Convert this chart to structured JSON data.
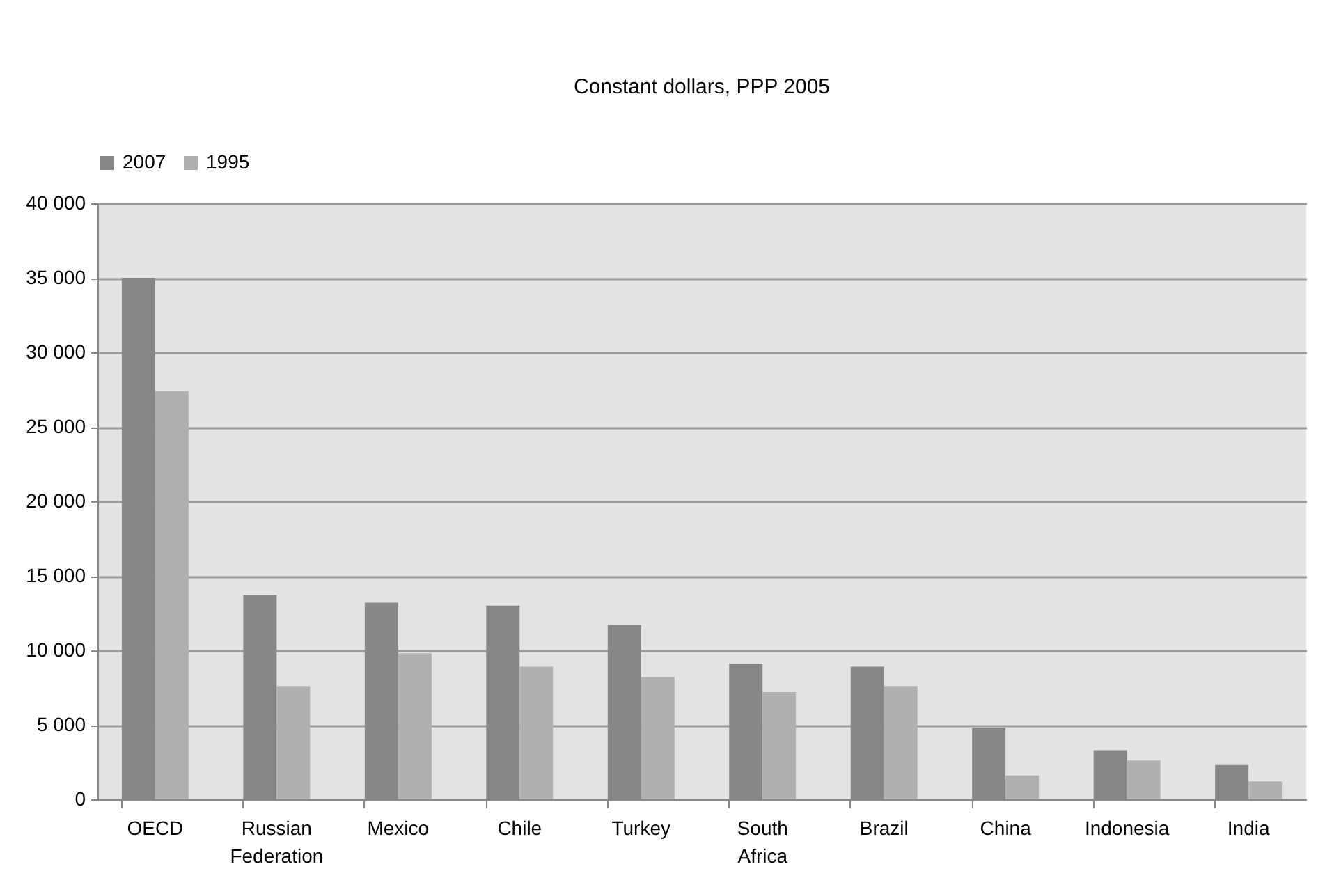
{
  "chart_data": {
    "type": "bar",
    "title": "Constant dollars, PPP 2005",
    "categories": [
      "OECD",
      "Russian Federation",
      "Mexico",
      "Chile",
      "Turkey",
      "South Africa",
      "Brazil",
      "China",
      "Indonesia",
      "India"
    ],
    "series": [
      {
        "name": "2007",
        "color": "#878787",
        "values": [
          35000,
          13700,
          13200,
          13000,
          11700,
          9100,
          8900,
          4800,
          3300,
          2300
        ]
      },
      {
        "name": "1995",
        "color": "#b0b0b0",
        "values": [
          27400,
          7600,
          9800,
          8900,
          8200,
          7200,
          7600,
          1600,
          2600,
          1200
        ]
      }
    ],
    "ylim": [
      0,
      40000
    ],
    "yticks": [
      {
        "value": 0,
        "label": "0"
      },
      {
        "value": 5000,
        "label": "5 000"
      },
      {
        "value": 10000,
        "label": "10 000"
      },
      {
        "value": 15000,
        "label": "15 000"
      },
      {
        "value": 20000,
        "label": "20 000"
      },
      {
        "value": 25000,
        "label": "25 000"
      },
      {
        "value": 30000,
        "label": "30 000"
      },
      {
        "value": 35000,
        "label": "35 000"
      },
      {
        "value": 40000,
        "label": "40 000"
      }
    ],
    "grid": "y",
    "legend": "top"
  }
}
